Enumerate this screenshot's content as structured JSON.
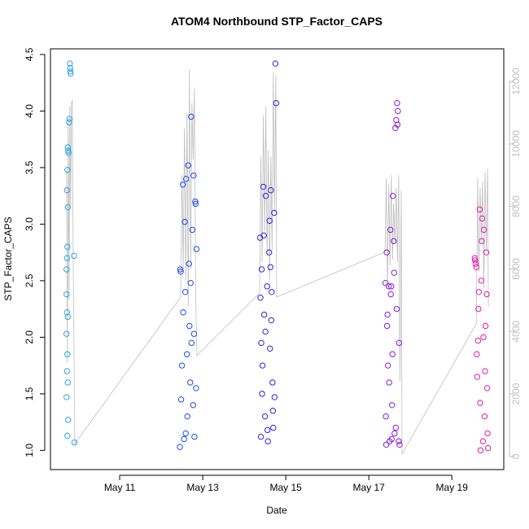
{
  "chart_data": {
    "type": "scatter",
    "title": "ATOM4 Northbound STP_Factor_CAPS",
    "x_label": "Date",
    "y_label": "STP_Factor_CAPS",
    "xlim": [
      9.333,
      20.25
    ],
    "xticks": [
      {
        "value": 11,
        "label": "May 11"
      },
      {
        "value": 13,
        "label": "May 13"
      },
      {
        "value": 15,
        "label": "May 15"
      },
      {
        "value": 17,
        "label": "May 17"
      },
      {
        "value": 19,
        "label": "May 19"
      }
    ],
    "ylim": [
      0.83,
      4.55
    ],
    "yticks": [
      {
        "value": 1,
        "label": "1.0"
      },
      1.5,
      {
        "value": 2,
        "label": "2.0"
      },
      2.5,
      {
        "value": 3,
        "label": "3.0"
      },
      3.5,
      {
        "value": 4,
        "label": "4.0"
      },
      4.5
    ],
    "y2lim": [
      -420,
      13040
    ],
    "y2ticks": [
      0,
      2000,
      4000,
      6000,
      8000,
      10000,
      12000
    ],
    "series": [
      {
        "type": "line",
        "axis": "y2",
        "color": "#bebebe",
        "x": [
          9.72,
          9.74,
          9.76,
          9.78,
          9.8,
          9.82,
          9.84,
          9.86,
          9.88,
          9.92,
          12.47,
          12.5,
          12.53,
          12.56,
          12.59,
          12.62,
          12.65,
          12.68,
          12.71,
          12.74,
          12.77,
          12.8,
          12.83,
          12.86,
          14.37,
          14.4,
          14.43,
          14.46,
          14.49,
          14.52,
          14.55,
          14.58,
          14.61,
          14.64,
          14.67,
          14.7,
          14.73,
          14.76,
          14.78,
          17.39,
          17.42,
          17.45,
          17.48,
          17.51,
          17.54,
          17.57,
          17.6,
          17.63,
          17.66,
          17.69,
          17.72,
          17.75,
          17.78,
          17.8,
          19.59,
          19.62,
          19.65,
          19.68,
          19.71,
          19.74,
          19.77,
          19.8,
          19.83,
          19.86,
          19.88
        ],
        "values": [
          9200,
          3000,
          10800,
          5000,
          11200,
          8000,
          11300,
          11400,
          6500,
          400,
          5100,
          9000,
          6000,
          10500,
          5600,
          11000,
          4800,
          12400,
          6000,
          11300,
          9500,
          11800,
          5200,
          3230,
          5230,
          9600,
          6200,
          10900,
          7200,
          11200,
          6400,
          9800,
          5600,
          9600,
          6600,
          12300,
          7800,
          12200,
          5100,
          6540,
          8900,
          5400,
          8700,
          6100,
          9000,
          6300,
          8100,
          6800,
          8600,
          6200,
          9000,
          2400,
          8500,
          80,
          4250,
          8900,
          5900,
          8600,
          6900,
          8800,
          5400,
          9100,
          6600,
          9200,
          4800
        ]
      },
      {
        "type": "scatter",
        "color": "#29a3e8",
        "x": [
          9.8,
          9.81,
          9.82,
          9.81,
          9.79,
          9.78,
          9.75,
          9.76,
          9.77,
          9.74,
          9.73,
          9.75,
          9.74,
          9.73,
          9.9,
          9.72,
          9.72,
          9.73,
          9.75,
          9.72,
          9.74,
          9.73,
          9.75,
          9.72,
          9.76,
          9.74,
          9.91
        ],
        "values": [
          4.42,
          4.38,
          4.33,
          4.35,
          3.93,
          3.9,
          3.68,
          3.65,
          3.63,
          3.48,
          3.3,
          3.15,
          2.8,
          2.7,
          2.72,
          2.6,
          2.38,
          2.22,
          2.18,
          2.03,
          1.85,
          1.7,
          1.6,
          1.47,
          1.27,
          1.13,
          1.07
        ]
      },
      {
        "type": "scatter",
        "color": "#1a4be8",
        "x": [
          12.45,
          12.47,
          12.5,
          12.52,
          12.55,
          12.58,
          12.6,
          12.62,
          12.65,
          12.68,
          12.7,
          12.72,
          12.75,
          12.78,
          12.8,
          12.82,
          12.85,
          12.48,
          12.53,
          12.57,
          12.63,
          12.67,
          12.73,
          12.77,
          12.83,
          12.46,
          12.59,
          12.71,
          12.79,
          12.84
        ],
        "values": [
          1.03,
          2.58,
          1.75,
          3.35,
          1.1,
          2.4,
          3.4,
          1.85,
          3.52,
          2.1,
          1.6,
          3.95,
          2.95,
          3.43,
          1.12,
          3.2,
          2.78,
          1.45,
          2.22,
          3.02,
          1.3,
          2.65,
          1.95,
          1.4,
          3.18,
          2.6,
          1.15,
          2.48,
          2.03,
          1.55
        ]
      },
      {
        "type": "scatter",
        "color": "#3a1ae0",
        "x": [
          14.38,
          14.4,
          14.42,
          14.44,
          14.46,
          14.48,
          14.5,
          14.52,
          14.55,
          14.57,
          14.6,
          14.62,
          14.64,
          14.66,
          14.68,
          14.7,
          14.72,
          14.75,
          14.77,
          14.39,
          14.43,
          14.47,
          14.51,
          14.56,
          14.61,
          14.65,
          14.69,
          14.73,
          14.41,
          14.63
        ],
        "values": [
          2.88,
          1.12,
          2.6,
          1.75,
          3.33,
          2.2,
          1.3,
          3.25,
          2.45,
          1.08,
          2.75,
          1.9,
          3.3,
          2.4,
          1.6,
          1.2,
          3.1,
          4.42,
          4.07,
          2.35,
          1.5,
          2.9,
          2.05,
          1.18,
          3.03,
          2.15,
          1.35,
          1.47,
          1.95,
          2.62
        ]
      },
      {
        "type": "scatter",
        "color": "#8a1ad8",
        "x": [
          17.4,
          17.42,
          17.44,
          17.46,
          17.48,
          17.5,
          17.52,
          17.54,
          17.56,
          17.58,
          17.6,
          17.62,
          17.64,
          17.66,
          17.68,
          17.7,
          17.72,
          17.74,
          17.41,
          17.45,
          17.49,
          17.53,
          17.57,
          17.61,
          17.65,
          17.69,
          17.73,
          17.43,
          17.55,
          17.67
        ],
        "values": [
          2.48,
          1.05,
          2.1,
          1.75,
          2.45,
          1.08,
          2.95,
          2.45,
          1.4,
          3.25,
          2.85,
          1.15,
          3.85,
          3.92,
          4.07,
          4.0,
          1.08,
          1.05,
          1.3,
          2.2,
          1.6,
          2.38,
          1.85,
          2.57,
          1.2,
          3.88,
          1.95,
          2.75,
          1.1,
          2.25
        ]
      },
      {
        "type": "scatter",
        "color": "#e01ab0",
        "x": [
          19.55,
          19.57,
          19.59,
          19.61,
          19.63,
          19.65,
          19.67,
          19.69,
          19.71,
          19.73,
          19.75,
          19.77,
          19.79,
          19.81,
          19.83,
          19.85,
          19.87,
          19.56,
          19.6,
          19.64,
          19.68,
          19.72,
          19.76,
          19.8,
          19.84,
          19.86
        ],
        "values": [
          2.7,
          2.65,
          2.62,
          1.65,
          1.97,
          2.4,
          3.13,
          1.0,
          2.5,
          3.05,
          1.08,
          2.95,
          1.3,
          2.1,
          2.75,
          1.55,
          1.02,
          2.68,
          1.85,
          2.25,
          1.42,
          2.85,
          2.0,
          1.7,
          2.38,
          1.15
        ]
      }
    ]
  }
}
